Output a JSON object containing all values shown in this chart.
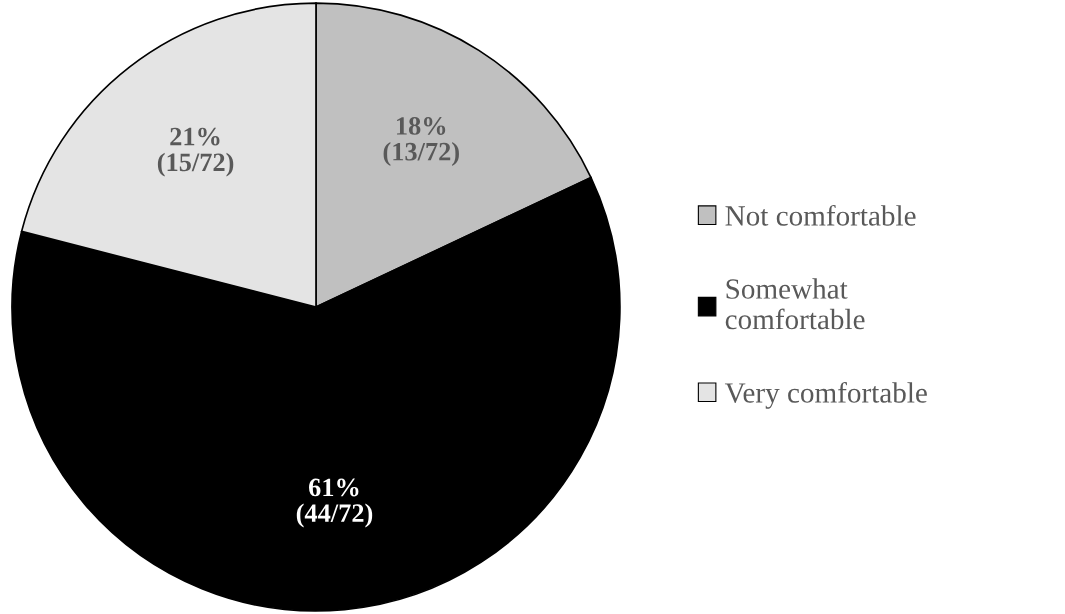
{
  "chart_data": {
    "type": "pie",
    "categories": [
      "Not comfortable",
      "Somewhat\ncomfortable",
      "Very comfortable"
    ],
    "values": [
      18,
      61,
      21
    ],
    "value_labels": [
      "18%\n(13/72)",
      "61%\n(44/72)",
      "21%\n(15/72)"
    ],
    "colors": [
      "#c0c0c0",
      "#000000",
      "#e4e4e4"
    ],
    "legend": "right"
  }
}
